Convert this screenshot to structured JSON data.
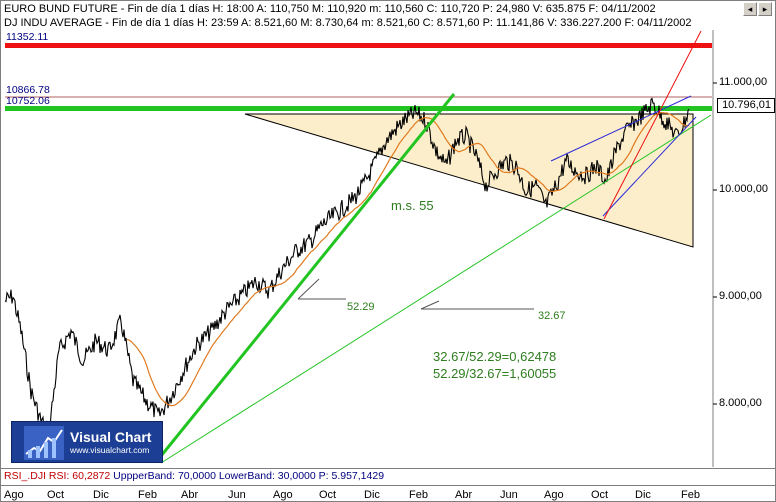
{
  "window": {
    "title_line_1": "EURO BUND FUTURE - Fin de día 1 días H: 18:00  A: 110,750  M: 110,920  m: 110,560  C: 110,720  P: 24,980  V: 635.875  F: 04/11/2002",
    "title_line_2": "DJ INDU AVERAGE - Fin de día 1 días H: 23:59  A: 8.521,60  M: 8.730,64  m: 8.521,60  C: 8.571,60  P: 11.141,86  V: 336.227.200  F: 04/11/2002",
    "buttons": [
      "◂",
      "▸"
    ]
  },
  "price_markers": {
    "red_line": "11352.11",
    "upper_line": "10866.78",
    "green_line": "10752.06"
  },
  "current_price": "10.796,01",
  "y_axis": {
    "ticks": [
      "11.000,00",
      "10.000,00",
      "9.000,00",
      "8.000,00"
    ]
  },
  "x_axis": {
    "ticks": [
      "Ago",
      "Oct",
      "Dic",
      "Feb",
      "Abr",
      "Jun",
      "Ago",
      "Oct",
      "Dic",
      "Feb",
      "Abr",
      "Jun",
      "Ago",
      "Oct",
      "Dic",
      "Feb"
    ]
  },
  "annotations": {
    "ma_label": "m.s. 55",
    "value_a": "52.29",
    "value_b": "32.67",
    "ratio_1": "32.67/52.29=0,62478",
    "ratio_2": "52.29/32.67=1,60055"
  },
  "logo": {
    "name": "Visual Chart",
    "url": "www.visualchart.com"
  },
  "rsi_bar": {
    "label": "RSI_.DJI  RSI: 60,2872",
    "params": "UppperBand: 70,0000  LowerBand: 30,0000  P: 5.957,1429"
  },
  "colors": {
    "price_series": "#000000",
    "moving_average": "#e07a1f",
    "trend_green": "#22c422",
    "support_line": "#22c422",
    "resistance_red": "#ee1111",
    "channel_blue": "#2a2ad8",
    "triangle_fill": "#fdeecb"
  }
}
